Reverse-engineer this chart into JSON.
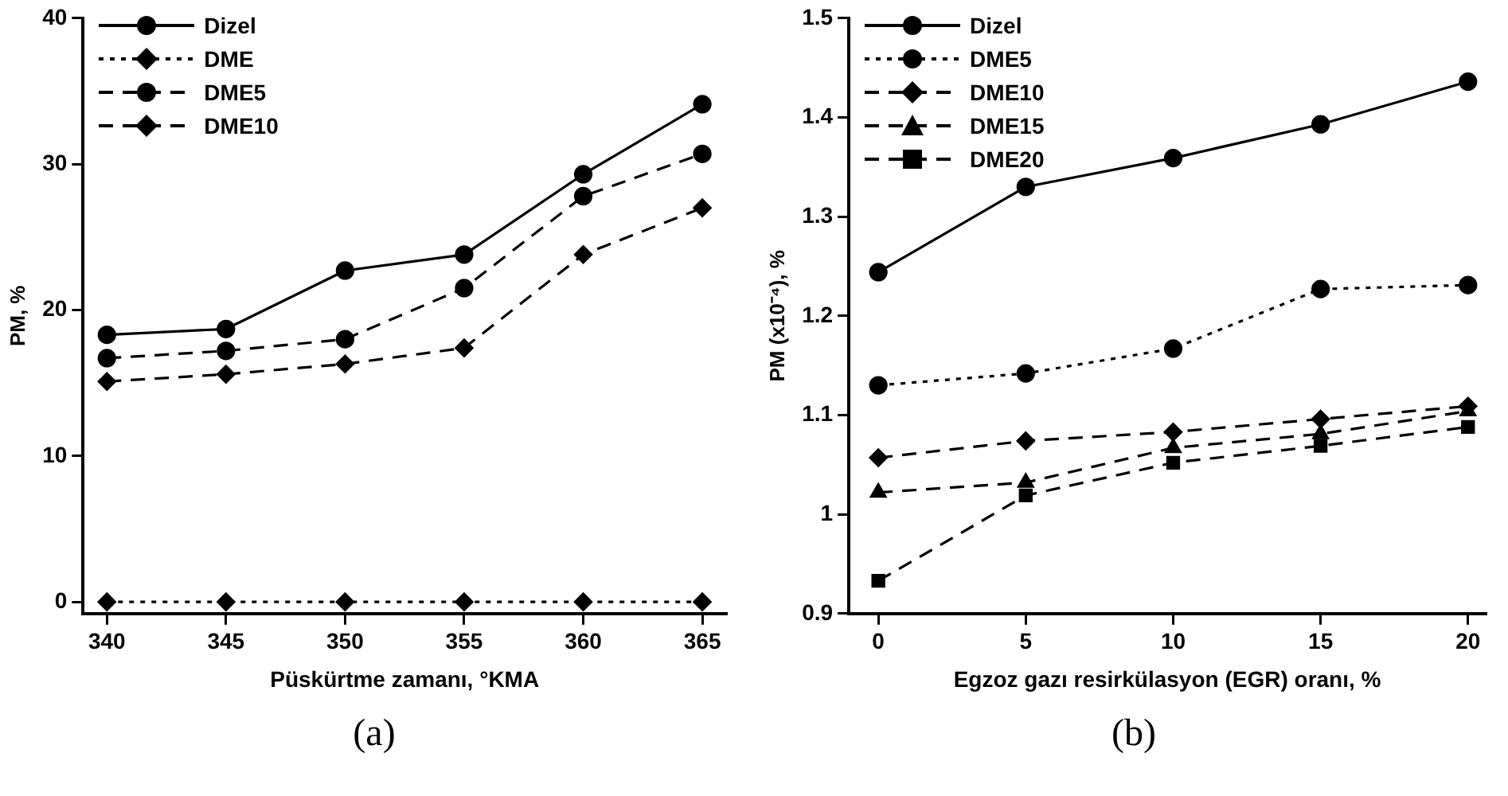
{
  "chart_data": [
    {
      "type": "line",
      "xlabel": "Püskürtme zamanı, °KMA",
      "ylabel": "PM, %",
      "annotations": [
        "(a)"
      ],
      "x": [
        340,
        345,
        350,
        355,
        360,
        365
      ],
      "xlim": [
        339,
        366
      ],
      "xticks": [
        340,
        345,
        350,
        355,
        360,
        365
      ],
      "ylim": [
        -0.8,
        40
      ],
      "yticks": [
        0,
        10,
        20,
        30,
        40
      ],
      "grid": false,
      "legend": "top left",
      "series": [
        {
          "name": "Dizel",
          "color": "#000000",
          "marker": "circle",
          "line_style": "solid",
          "values": [
            18.3,
            18.7,
            22.7,
            23.8,
            29.3,
            34.1
          ]
        },
        {
          "name": "DME",
          "color": "#000000",
          "marker": "diamond",
          "line_style": "dotted",
          "values": [
            0,
            0,
            0,
            0,
            0,
            0
          ]
        },
        {
          "name": "DME5",
          "color": "#000000",
          "marker": "circle",
          "line_style": "dashed",
          "values": [
            16.7,
            17.2,
            18.0,
            21.5,
            27.8,
            30.7
          ]
        },
        {
          "name": "DME10",
          "color": "#000000",
          "marker": "diamond",
          "line_style": "dashed",
          "values": [
            15.1,
            15.6,
            16.3,
            17.4,
            23.8,
            27.0
          ]
        }
      ]
    },
    {
      "type": "line",
      "xlabel": "Egzoz gazı resirkülasyon (EGR) oranı, %",
      "ylabel": "PM (x10⁻⁴), %",
      "annotations": [
        "(b)"
      ],
      "x": [
        0,
        5,
        10,
        15,
        20
      ],
      "xlim": [
        -1,
        20.6
      ],
      "xticks": [
        0,
        5,
        10,
        15,
        20
      ],
      "ylim": [
        0.9,
        1.5
      ],
      "yticks": [
        0.9,
        1,
        1.1,
        1.2,
        1.3,
        1.4,
        1.5
      ],
      "grid": false,
      "legend": "top left",
      "series": [
        {
          "name": "Dizel",
          "color": "#000000",
          "marker": "circle",
          "line_style": "solid",
          "values": [
            1.244,
            1.33,
            1.359,
            1.393,
            1.436
          ]
        },
        {
          "name": "DME5",
          "color": "#000000",
          "marker": "circle",
          "line_style": "dotted",
          "values": [
            1.13,
            1.142,
            1.167,
            1.227,
            1.231
          ]
        },
        {
          "name": "DME10",
          "color": "#000000",
          "marker": "diamond",
          "line_style": "dashed",
          "values": [
            1.057,
            1.074,
            1.083,
            1.096,
            1.109
          ]
        },
        {
          "name": "DME15",
          "color": "#000000",
          "marker": "triangle",
          "line_style": "dashed",
          "values": [
            1.022,
            1.032,
            1.067,
            1.081,
            1.104
          ]
        },
        {
          "name": "DME20",
          "color": "#000000",
          "marker": "square",
          "line_style": "dashed",
          "values": [
            0.933,
            1.019,
            1.052,
            1.069,
            1.088
          ]
        }
      ]
    }
  ]
}
